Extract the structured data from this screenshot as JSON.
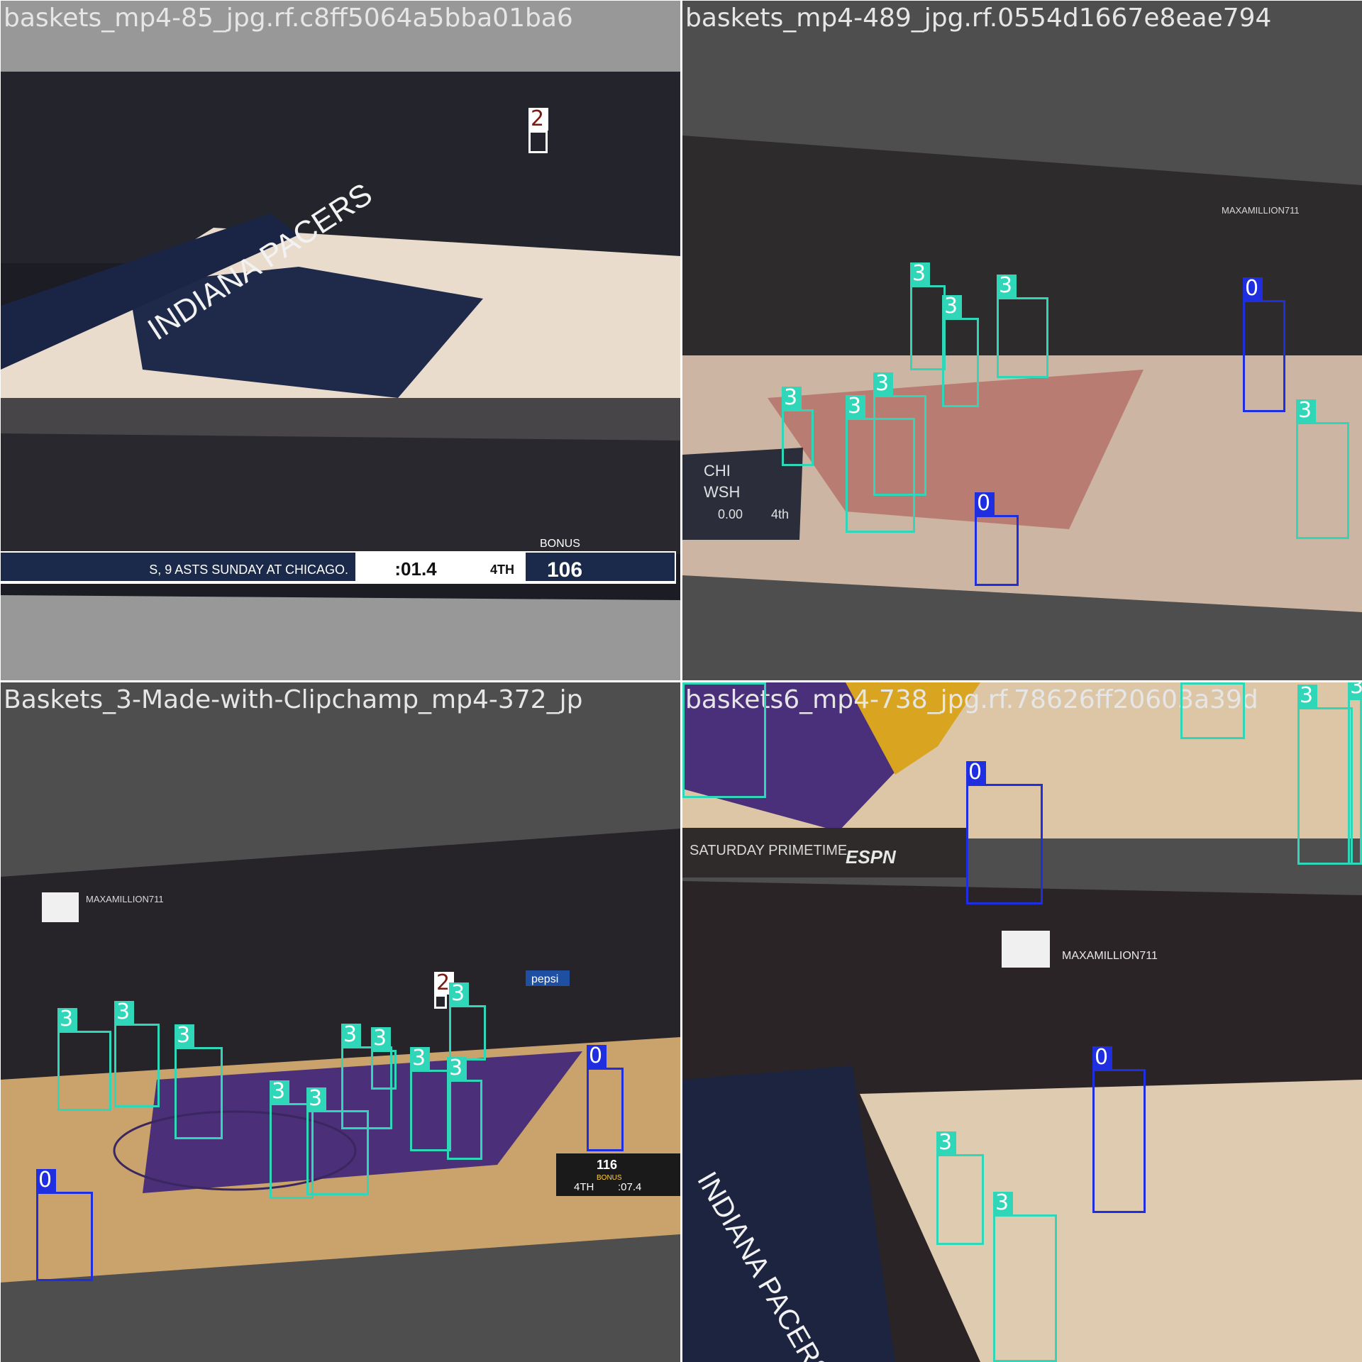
{
  "tiles": [
    {
      "filename": "baskets_mp4-85_jpg.rf.c8ff5064a5bba01ba6",
      "scene": {
        "overlay_text": "INDIANA PACERS",
        "score_bug": {
          "ticker": "S, 9 ASTS SUNDAY AT CHICAGO.",
          "clock": ":01.4",
          "period": "4TH",
          "score": "106",
          "bonus": "BONUS"
        }
      },
      "detections": [
        {
          "class": "2"
        }
      ]
    },
    {
      "filename": "baskets_mp4-489_jpg.rf.0554d1667e8eae794",
      "scene": {
        "watermark": "MAXAMILLION711",
        "score_bug": {
          "team_a": "CHI",
          "team_b": "WSH",
          "clock": "0.00",
          "period": "4th"
        }
      },
      "detections": [
        {
          "class": "3"
        },
        {
          "class": "3"
        },
        {
          "class": "3"
        },
        {
          "class": "0"
        },
        {
          "class": "3"
        },
        {
          "class": "3"
        },
        {
          "class": "3"
        },
        {
          "class": "3"
        },
        {
          "class": "0"
        }
      ]
    },
    {
      "filename": "Baskets_3-Made-with-Clipchamp_mp4-372_jp",
      "scene": {
        "watermark": "MAXAMILLION711",
        "sponsor": "pepsi",
        "score_bug": {
          "score_a": "116",
          "period": "4TH",
          "clock": ":07.4",
          "bonus": "BONUS"
        }
      },
      "detections": [
        {
          "class": "3"
        },
        {
          "class": "3"
        },
        {
          "class": "3"
        },
        {
          "class": "2"
        },
        {
          "class": "3"
        },
        {
          "class": "3"
        },
        {
          "class": "3"
        },
        {
          "class": "3"
        },
        {
          "class": "3"
        },
        {
          "class": "3"
        },
        {
          "class": "3"
        },
        {
          "class": "0"
        },
        {
          "class": "0"
        }
      ]
    },
    {
      "filename": "baskets6_mp4-738_jpg.rf.78626ff20603a39d",
      "scene": {
        "watermark": "MAXAMILLION711",
        "banner": "SATURDAY PRIMETIME",
        "network": "ESPN",
        "overlay_text": "INDIANA PACERS"
      },
      "detections": [
        {
          "class": "3"
        },
        {
          "class": "3"
        },
        {
          "class": "3"
        },
        {
          "class": "3"
        },
        {
          "class": "0"
        },
        {
          "class": "0"
        },
        {
          "class": "3"
        },
        {
          "class": "3"
        }
      ]
    }
  ],
  "colors": {
    "class_0": "#1f2fe0",
    "class_2": "#ffffff",
    "class_3": "#2fd6b8"
  }
}
